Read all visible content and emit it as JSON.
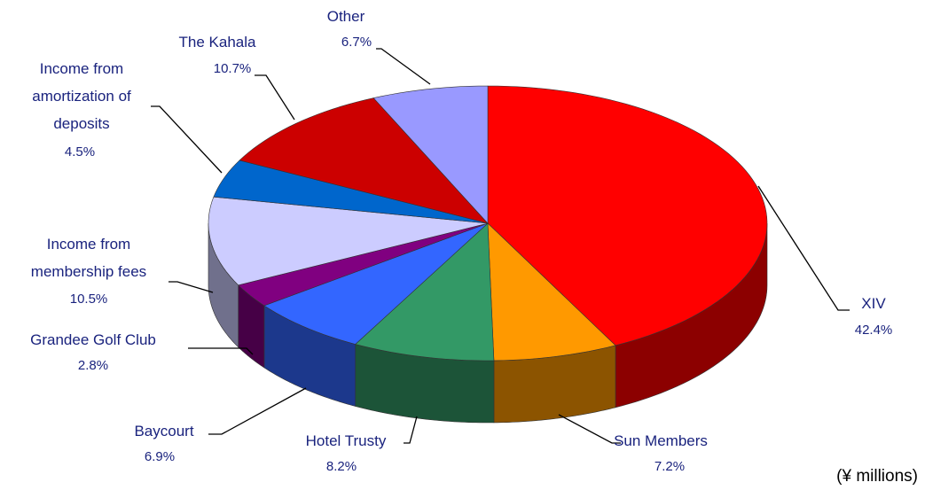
{
  "chart_data": {
    "type": "pie3d",
    "categories": [
      "XIV",
      "Sun Members",
      "Hotel Trusty",
      "Baycourt",
      "Grandee Golf Club",
      "Income from membership fees",
      "Income from amortization of deposits",
      "The Kahala",
      "Other"
    ],
    "values": [
      42.4,
      7.2,
      8.2,
      6.9,
      2.8,
      10.5,
      4.5,
      10.7,
      6.7
    ],
    "value_labels": [
      "42.4%",
      "7.2%",
      "8.2%",
      "6.9%",
      "2.8%",
      "10.5%",
      "4.5%",
      "10.7%",
      "6.7%"
    ],
    "colors": [
      "#ff0000",
      "#ff9900",
      "#339966",
      "#3366ff",
      "#800080",
      "#ccccff",
      "#0066cc",
      "#cc0000",
      "#9999ff"
    ],
    "annotation": "(¥ millions)"
  }
}
